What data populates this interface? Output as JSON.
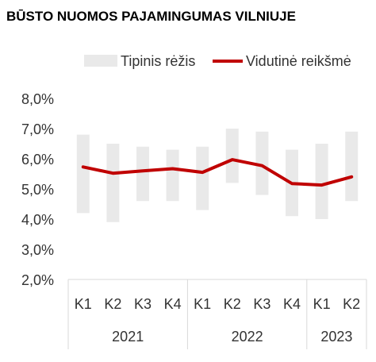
{
  "chart_data": {
    "type": "line",
    "title": "BŪSTO NUOMOS PAJAMINGUMAS VILNIUJE",
    "xlabel": "",
    "ylabel": "",
    "categories": [
      "K1",
      "K2",
      "K3",
      "K4",
      "K1",
      "K2",
      "K3",
      "K4",
      "K1",
      "K2"
    ],
    "groups": [
      {
        "label": "2021",
        "span": 4
      },
      {
        "label": "2022",
        "span": 4
      },
      {
        "label": "2023",
        "span": 2
      }
    ],
    "y_ticks": [
      "8,0%",
      "7,0%",
      "6,0%",
      "5,0%",
      "4,0%",
      "3,0%",
      "2,0%"
    ],
    "ylim": [
      2.0,
      8.0
    ],
    "series": [
      {
        "name": "Tipinis rėžis",
        "type": "range",
        "low": [
          4.2,
          3.9,
          4.6,
          4.6,
          4.3,
          5.2,
          4.8,
          4.1,
          4.0,
          4.6
        ],
        "high": [
          6.8,
          6.5,
          6.4,
          6.3,
          6.4,
          7.0,
          6.9,
          6.3,
          6.5,
          6.9
        ]
      },
      {
        "name": "Vidutinė reikšmė",
        "type": "line",
        "values": [
          5.73,
          5.52,
          5.6,
          5.67,
          5.55,
          5.97,
          5.77,
          5.18,
          5.13,
          5.4
        ]
      }
    ],
    "legend_position": "top-right",
    "colors": {
      "range": "#e9e9e9",
      "line": "#c00000",
      "axis": "#d9d9d9",
      "text": "#333333"
    }
  }
}
